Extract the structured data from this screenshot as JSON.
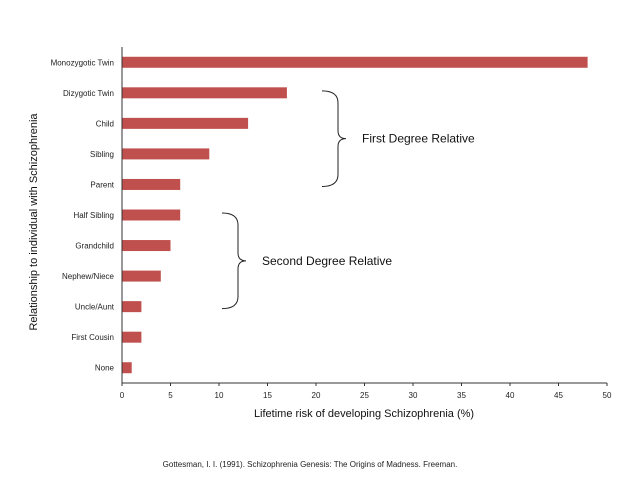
{
  "chart_data": {
    "type": "bar",
    "orientation": "horizontal",
    "categories": [
      "Monozygotic Twin",
      "Dizygotic Twin",
      "Child",
      "Sibling",
      "Parent",
      "Half Sibling",
      "Grandchild",
      "Nephew/Niece",
      "Uncle/Aunt",
      "First Cousin",
      "None"
    ],
    "values": [
      48,
      17,
      13,
      9,
      6,
      6,
      5,
      4,
      2,
      2,
      1
    ],
    "xlabel": "Lifetime risk of developing Schizophrenia (%)",
    "ylabel": "Relationship to individual with Schizophrenia",
    "xlim": [
      0,
      50
    ],
    "xticks": [
      "0",
      "5",
      "10",
      "15",
      "20",
      "25",
      "30",
      "35",
      "40",
      "45",
      "50"
    ],
    "grid": false,
    "bar_color": "#c0504d",
    "annotations": [
      {
        "text": "First Degree Relative",
        "from_category": "Dizygotic Twin",
        "to_category": "Parent"
      },
      {
        "text": "Second Degree Relative",
        "from_category": "Half Sibling",
        "to_category": "Uncle/Aunt"
      }
    ]
  },
  "source_note": "Gottesman, I. I. (1991). Schizophrenia Genesis: The Origins of Madness. Freeman."
}
